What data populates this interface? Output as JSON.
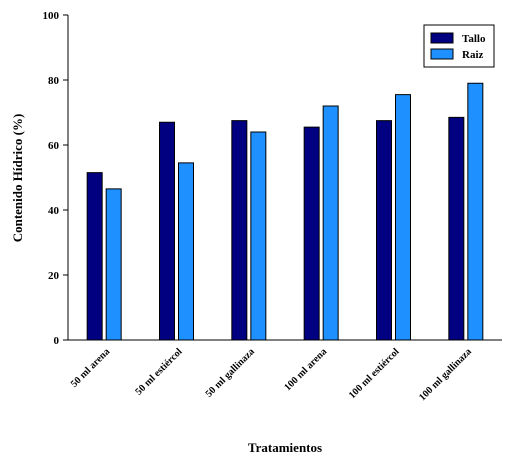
{
  "chart_data": {
    "type": "bar",
    "xlabel": "Tratamientos",
    "ylabel": "Contenido Hídrico (%)",
    "ylim": [
      0,
      100
    ],
    "yticks": [
      0,
      20,
      40,
      60,
      80,
      100
    ],
    "categories": [
      "50 ml arena",
      "50 ml estiércol",
      "50 ml gallinaza",
      "100 ml arena",
      "100 ml estiércol",
      "100 ml gallinaza"
    ],
    "series": [
      {
        "name": "Tallo",
        "color": "#000080",
        "values": [
          51.5,
          67,
          67.5,
          65.5,
          67.5,
          68.5
        ]
      },
      {
        "name": "Raiz",
        "color": "#1e90ff",
        "values": [
          46.5,
          54.5,
          64,
          72,
          75.5,
          79
        ]
      }
    ],
    "legend_position": "top-right",
    "grid": false
  }
}
